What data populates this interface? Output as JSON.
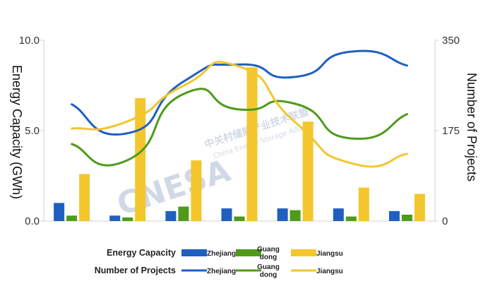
{
  "chart_data": {
    "type": "bar",
    "x": [
      1,
      2,
      3,
      4,
      5,
      6,
      7
    ],
    "left_axis": {
      "label": "Energy Capacity (GWh)",
      "ylim": [
        0,
        10
      ],
      "ticks": [
        "0.0",
        "5.0",
        "10.0"
      ]
    },
    "right_axis": {
      "label": "Number of Projects",
      "ylim": [
        0,
        350
      ],
      "ticks": [
        "0",
        "175",
        "350"
      ]
    },
    "bar_series": [
      {
        "name": "Zhejiang",
        "color": "#1f5fbf",
        "values": [
          1.0,
          0.3,
          0.55,
          0.7,
          0.7,
          0.7,
          0.55
        ]
      },
      {
        "name": "Guang dong",
        "color": "#4f9a1b",
        "values": [
          0.3,
          0.2,
          0.8,
          0.25,
          0.6,
          0.25,
          0.35
        ]
      },
      {
        "name": "Jiangsu",
        "color": "#f3c62d",
        "values": [
          2.6,
          6.8,
          3.35,
          8.5,
          5.5,
          1.85,
          1.5
        ]
      }
    ],
    "line_series": [
      {
        "name": "Zhejiang",
        "color": "#1f5fbf",
        "values": [
          226,
          170,
          270,
          303,
          279,
          328,
          301
        ]
      },
      {
        "name": "Guang dong",
        "color": "#4f9a1b",
        "values": [
          149,
          118,
          246,
          216,
          227,
          160,
          207
        ]
      },
      {
        "name": "Jiangsu",
        "color": "#f3c62d",
        "values": [
          179,
          193,
          262,
          299,
          191,
          112,
          130
        ]
      }
    ],
    "grid": false,
    "legend_position": "bottom"
  },
  "legend": {
    "bar_title": "Energy Capacity",
    "line_title": "Number of Projects",
    "entries": [
      "Zhejiang",
      "Guang\ndong",
      "Jiangsu"
    ]
  },
  "watermark": {
    "logo_text": "CNESA",
    "cn_text": "中关村储能产业技术联盟",
    "en_text": "China Energy Storage Alliance"
  }
}
